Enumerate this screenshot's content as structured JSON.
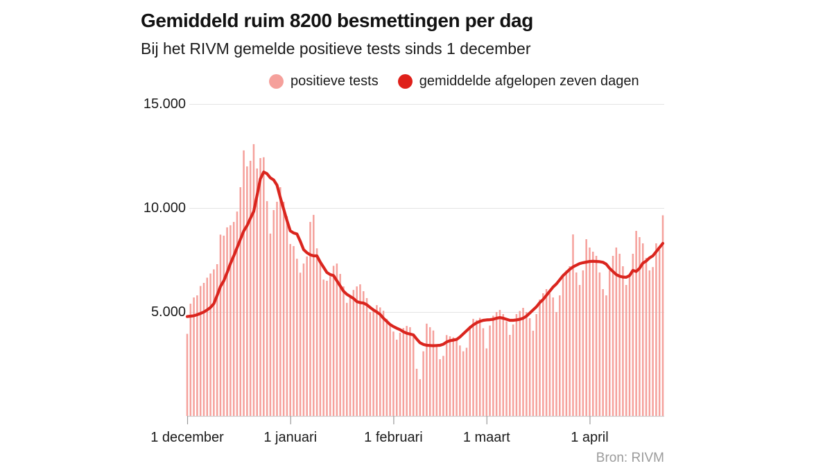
{
  "title": "Gemiddeld ruim 8200 besmettingen per dag",
  "subtitle": "Bij het RIVM gemelde positieve tests sinds 1 december",
  "source": "Bron: RIVM",
  "legend": {
    "items": [
      {
        "label": "positieve tests",
        "color": "#f5a09b"
      },
      {
        "label": "gemiddelde afgelopen zeven dagen",
        "color": "#df201a"
      }
    ]
  },
  "colors": {
    "bar": "#f5a09b",
    "line": "#da251e",
    "gridline": "#e4e4e4",
    "axis": "#cfcfcf",
    "tick": "#999999",
    "text": "#1a1a1a",
    "muted": "#9b9b9b"
  },
  "chart_data": {
    "type": "bar",
    "note": "daily reported positive COVID-19 tests NL, 1 dec 2020 - 23 apr 2021; bar series plus 7-day trailing average line",
    "x_unit": "day",
    "n_days": 144,
    "ylim": [
      0,
      15000
    ],
    "grid": "horizontal",
    "y_ticks": [
      {
        "value": 5000,
        "label": "5.000"
      },
      {
        "value": 10000,
        "label": "10.000"
      },
      {
        "value": 15000,
        "label": "15.000"
      }
    ],
    "x_ticks": [
      {
        "label": "1 december",
        "day": 0
      },
      {
        "label": "1 januari",
        "day": 31
      },
      {
        "label": "1 februari",
        "day": 62
      },
      {
        "label": "1 maart",
        "day": 90
      },
      {
        "label": "1 april",
        "day": 121
      }
    ],
    "series": [
      {
        "name": "positieve tests",
        "type": "bar",
        "color": "#f5a09b",
        "values": [
          3950,
          5400,
          5700,
          5800,
          6250,
          6400,
          6650,
          6850,
          7050,
          7300,
          8720,
          8670,
          9070,
          9170,
          9330,
          9830,
          11000,
          12770,
          12000,
          12270,
          13070,
          11900,
          12400,
          12440,
          10330,
          8770,
          9900,
          10300,
          11000,
          10300,
          9600,
          8270,
          8170,
          7560,
          6890,
          7330,
          7670,
          9330,
          9670,
          8060,
          7440,
          6560,
          6500,
          6720,
          7220,
          7330,
          6830,
          6230,
          5440,
          5780,
          6060,
          6230,
          6330,
          6000,
          5670,
          5000,
          5170,
          5330,
          5220,
          5060,
          4670,
          4400,
          4060,
          3670,
          4000,
          4230,
          4330,
          4270,
          3890,
          2270,
          1770,
          3110,
          4440,
          4270,
          4110,
          3440,
          2730,
          2890,
          3890,
          3830,
          3780,
          3610,
          3390,
          3110,
          3280,
          4330,
          4670,
          4610,
          4720,
          4220,
          3250,
          4350,
          4820,
          5000,
          5100,
          4900,
          4550,
          3900,
          4400,
          4900,
          5050,
          5200,
          5000,
          4700,
          4100,
          4900,
          5600,
          5900,
          6100,
          5900,
          5700,
          5000,
          5800,
          6700,
          7000,
          7200,
          8730,
          6900,
          6300,
          7000,
          8500,
          8100,
          7900,
          7700,
          6900,
          6100,
          5800,
          7000,
          7700,
          8100,
          7800,
          7200,
          6300,
          6700,
          7800,
          8900,
          8600,
          8300,
          7600,
          7000,
          7160,
          8300,
          8000,
          9650
        ]
      },
      {
        "name": "gemiddelde afgelopen zeven dagen",
        "type": "line",
        "color": "#da251e",
        "values": [
          4780,
          4800,
          4820,
          4870,
          4930,
          5000,
          5100,
          5220,
          5400,
          5800,
          6230,
          6500,
          6900,
          7330,
          7700,
          8100,
          8500,
          8900,
          9150,
          9500,
          9830,
          10600,
          11400,
          11730,
          11650,
          11450,
          11350,
          11100,
          10500,
          9950,
          9400,
          8900,
          8800,
          8750,
          8400,
          8000,
          7850,
          7750,
          7700,
          7700,
          7400,
          7150,
          6900,
          6800,
          6750,
          6500,
          6250,
          6000,
          5850,
          5750,
          5650,
          5500,
          5450,
          5430,
          5350,
          5220,
          5100,
          5000,
          4890,
          4700,
          4550,
          4400,
          4300,
          4220,
          4150,
          4050,
          3980,
          3940,
          3900,
          3700,
          3520,
          3440,
          3400,
          3390,
          3380,
          3390,
          3400,
          3450,
          3560,
          3620,
          3650,
          3680,
          3800,
          3950,
          4100,
          4250,
          4380,
          4480,
          4550,
          4600,
          4620,
          4630,
          4650,
          4700,
          4730,
          4700,
          4650,
          4600,
          4600,
          4620,
          4650,
          4700,
          4800,
          4950,
          5100,
          5250,
          5450,
          5600,
          5800,
          6000,
          6200,
          6350,
          6550,
          6750,
          6900,
          7050,
          7170,
          7250,
          7330,
          7370,
          7400,
          7430,
          7440,
          7430,
          7420,
          7390,
          7300,
          7100,
          6950,
          6800,
          6720,
          6680,
          6670,
          6750,
          7000,
          6950,
          7100,
          7350,
          7450,
          7600,
          7700,
          7900,
          8100,
          8300
        ]
      }
    ]
  }
}
